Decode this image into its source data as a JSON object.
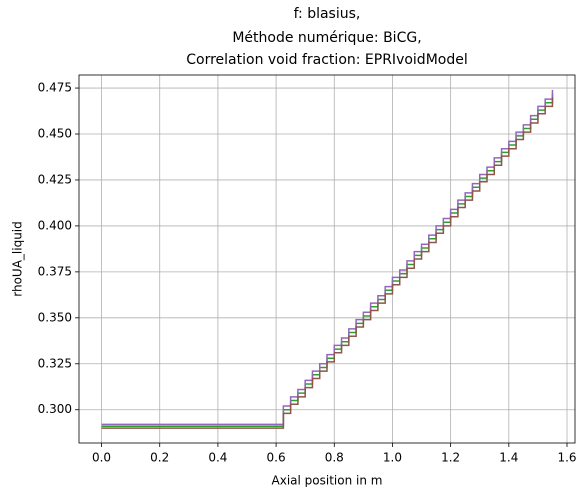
{
  "chart_data": {
    "type": "step",
    "title": [
      "f: blasius,",
      "Méthode numérique: BiCG,",
      "Correlation void fraction: EPRIvoidModel"
    ],
    "xlabel": "Axial position in m",
    "ylabel": "rhoUA_liquid",
    "x": [
      0,
      0.6,
      0.625,
      0.65,
      0.675,
      0.7,
      0.725,
      0.75,
      0.775,
      0.8,
      0.825,
      0.85,
      0.875,
      0.9,
      0.925,
      0.95,
      0.975,
      1,
      1.025,
      1.05,
      1.075,
      1.1,
      1.125,
      1.15,
      1.175,
      1.2,
      1.225,
      1.25,
      1.275,
      1.3,
      1.325,
      1.35,
      1.375,
      1.4,
      1.425,
      1.45,
      1.475,
      1.5,
      1.525,
      1.55
    ],
    "series": [
      {
        "color": "#2ca02c",
        "values": [
          0.291,
          0.291,
          0.3,
          0.305,
          0.309,
          0.314,
          0.319,
          0.323,
          0.328,
          0.333,
          0.337,
          0.342,
          0.347,
          0.351,
          0.356,
          0.36,
          0.365,
          0.37,
          0.374,
          0.379,
          0.384,
          0.388,
          0.393,
          0.398,
          0.402,
          0.407,
          0.412,
          0.416,
          0.421,
          0.426,
          0.43,
          0.435,
          0.44,
          0.444,
          0.449,
          0.453,
          0.458,
          0.463,
          0.467,
          0.472
        ]
      },
      {
        "color": "#9467bd",
        "values": [
          0.292,
          0.292,
          0.302,
          0.307,
          0.311,
          0.316,
          0.321,
          0.325,
          0.33,
          0.335,
          0.339,
          0.344,
          0.349,
          0.353,
          0.358,
          0.362,
          0.367,
          0.372,
          0.376,
          0.381,
          0.386,
          0.39,
          0.395,
          0.4,
          0.404,
          0.409,
          0.414,
          0.418,
          0.423,
          0.428,
          0.432,
          0.437,
          0.442,
          0.446,
          0.451,
          0.455,
          0.46,
          0.465,
          0.469,
          0.474
        ]
      },
      {
        "color": "#8c564b",
        "values": [
          0.29,
          0.29,
          0.298,
          0.303,
          0.307,
          0.312,
          0.317,
          0.321,
          0.326,
          0.331,
          0.335,
          0.34,
          0.345,
          0.349,
          0.354,
          0.358,
          0.363,
          0.368,
          0.372,
          0.377,
          0.382,
          0.386,
          0.391,
          0.396,
          0.4,
          0.405,
          0.41,
          0.414,
          0.419,
          0.424,
          0.428,
          0.433,
          0.438,
          0.442,
          0.447,
          0.451,
          0.456,
          0.461,
          0.465,
          0.47
        ]
      }
    ],
    "xlim": [
      -0.0775,
      1.6275
    ],
    "ylim": [
      0.2819,
      0.4821
    ],
    "xticks": [
      {
        "value": 0,
        "label": "0.0"
      },
      0.2,
      0.4,
      0.6,
      0.8,
      {
        "value": 1,
        "label": "1.0"
      },
      1.2,
      1.4,
      1.6
    ],
    "yticks": [
      {
        "value": 0.3,
        "label": "0.300"
      },
      0.325,
      {
        "value": 0.35,
        "label": "0.350"
      },
      0.375,
      {
        "value": 0.4,
        "label": "0.400"
      },
      0.425,
      {
        "value": 0.45,
        "label": "0.450"
      },
      0.475
    ],
    "grid": true
  }
}
